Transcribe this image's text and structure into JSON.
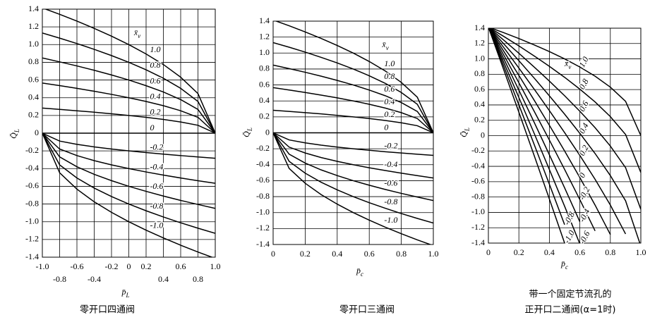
{
  "chart_data": [
    {
      "type": "line",
      "color": "#000000",
      "grid": true,
      "x_label": "p̄",
      "x_label_sub": "L",
      "y_label": "Q̄",
      "y_label_sub": "L",
      "legend_title": "x̄",
      "legend_title_sub": "v",
      "caption": [
        "零开口四通阀"
      ],
      "xlim": [
        -1,
        1
      ],
      "ylim": [
        -1.4,
        1.4
      ],
      "xticks": [
        {
          "value": -1,
          "label": "-1.0"
        },
        -0.8,
        -0.6,
        -0.4,
        -0.2,
        0,
        0.2,
        0.4,
        0.6,
        0.8,
        {
          "value": 1,
          "label": "1.0"
        }
      ],
      "yticks": [
        -1.4,
        -1.2,
        {
          "value": -1,
          "label": "-1.0"
        },
        -0.8,
        -0.6,
        -0.4,
        -0.2,
        0,
        0.2,
        0.4,
        0.6,
        0.8,
        {
          "value": 1,
          "label": "1.0"
        },
        1.2,
        1.4
      ],
      "x": [
        -1,
        -0.8,
        -0.6,
        -0.4,
        -0.2,
        0,
        0.2,
        0.4,
        0.6,
        0.8,
        1
      ],
      "series": [
        {
          "name": "1.0",
          "values": [
            1.414,
            1.342,
            1.265,
            1.183,
            1.095,
            1,
            0.894,
            0.775,
            0.632,
            0.447,
            0
          ]
        },
        {
          "name": "0.8",
          "values": [
            1.131,
            1.073,
            1.012,
            0.946,
            0.876,
            0.8,
            0.715,
            0.62,
            0.506,
            0.358,
            0
          ]
        },
        {
          "name": "0.6",
          "values": [
            0.849,
            0.805,
            0.759,
            0.71,
            0.657,
            0.6,
            0.536,
            0.465,
            0.379,
            0.268,
            0
          ]
        },
        {
          "name": "0.4",
          "values": [
            0.566,
            0.537,
            0.506,
            0.473,
            0.438,
            0.4,
            0.358,
            0.31,
            0.253,
            0.179,
            0
          ]
        },
        {
          "name": "0.2",
          "values": [
            0.283,
            0.268,
            0.253,
            0.237,
            0.219,
            0.2,
            0.179,
            0.155,
            0.126,
            0.089,
            0
          ]
        },
        {
          "name": "0",
          "values": [
            0,
            0,
            0,
            0,
            0,
            0,
            0,
            0,
            0,
            0,
            0
          ]
        },
        {
          "name": "-0.2",
          "values": [
            0,
            -0.089,
            -0.126,
            -0.155,
            -0.179,
            -0.2,
            -0.219,
            -0.237,
            -0.253,
            -0.268,
            -0.283
          ]
        },
        {
          "name": "-0.4",
          "values": [
            0,
            -0.179,
            -0.253,
            -0.31,
            -0.358,
            -0.4,
            -0.438,
            -0.473,
            -0.506,
            -0.537,
            -0.566
          ]
        },
        {
          "name": "-0.6",
          "values": [
            0,
            -0.268,
            -0.379,
            -0.465,
            -0.536,
            -0.6,
            -0.657,
            -0.71,
            -0.759,
            -0.805,
            -0.849
          ]
        },
        {
          "name": "-0.8",
          "values": [
            0,
            -0.358,
            -0.506,
            -0.62,
            -0.715,
            -0.8,
            -0.876,
            -0.946,
            -1.012,
            -1.073,
            -1.131
          ]
        },
        {
          "name": "-1.0",
          "values": [
            0,
            -0.447,
            -0.632,
            -0.775,
            -0.894,
            -1,
            -1.095,
            -1.183,
            -1.265,
            -1.342,
            -1.414
          ]
        }
      ]
    },
    {
      "type": "line",
      "color": "#000000",
      "grid": true,
      "x_label": "p̄",
      "x_label_sub": "c",
      "y_label": "Q̄",
      "y_label_sub": "L",
      "legend_title": "x̄",
      "legend_title_sub": "v",
      "caption": [
        "零开口三通阀"
      ],
      "xlim": [
        0,
        1
      ],
      "ylim": [
        -1.4,
        1.4
      ],
      "xticks": [
        0,
        0.2,
        0.4,
        0.6,
        0.8,
        {
          "value": 1,
          "label": "1.0"
        }
      ],
      "yticks": [
        -1.4,
        -1.2,
        {
          "value": -1,
          "label": "-1.0"
        },
        -0.8,
        -0.6,
        -0.4,
        -0.2,
        0,
        0.2,
        0.4,
        0.6,
        0.8,
        {
          "value": 1,
          "label": "1.0"
        },
        1.2,
        1.4
      ],
      "x": [
        0,
        0.1,
        0.2,
        0.3,
        0.4,
        0.5,
        0.6,
        0.7,
        0.8,
        0.9,
        1
      ],
      "series": [
        {
          "name": "1.0",
          "values": [
            1.414,
            1.342,
            1.265,
            1.183,
            1.095,
            1,
            0.894,
            0.775,
            0.632,
            0.447,
            0
          ]
        },
        {
          "name": "0.8",
          "values": [
            1.131,
            1.073,
            1.012,
            0.946,
            0.876,
            0.8,
            0.715,
            0.62,
            0.506,
            0.358,
            0
          ]
        },
        {
          "name": "0.6",
          "values": [
            0.849,
            0.805,
            0.759,
            0.71,
            0.657,
            0.6,
            0.536,
            0.465,
            0.379,
            0.268,
            0
          ]
        },
        {
          "name": "0.4",
          "values": [
            0.566,
            0.537,
            0.506,
            0.473,
            0.438,
            0.4,
            0.358,
            0.31,
            0.253,
            0.179,
            0
          ]
        },
        {
          "name": "0.2",
          "values": [
            0.283,
            0.268,
            0.253,
            0.237,
            0.219,
            0.2,
            0.179,
            0.155,
            0.126,
            0.089,
            0
          ]
        },
        {
          "name": "0",
          "values": [
            0,
            0,
            0,
            0,
            0,
            0,
            0,
            0,
            0,
            0,
            0
          ]
        },
        {
          "name": "-0.2",
          "values": [
            0,
            -0.089,
            -0.126,
            -0.155,
            -0.179,
            -0.2,
            -0.219,
            -0.237,
            -0.253,
            -0.268,
            -0.283
          ]
        },
        {
          "name": "-0.4",
          "values": [
            0,
            -0.179,
            -0.253,
            -0.31,
            -0.358,
            -0.4,
            -0.438,
            -0.473,
            -0.506,
            -0.537,
            -0.566
          ]
        },
        {
          "name": "-0.6",
          "values": [
            0,
            -0.268,
            -0.379,
            -0.465,
            -0.536,
            -0.6,
            -0.657,
            -0.71,
            -0.759,
            -0.805,
            -0.849
          ]
        },
        {
          "name": "-0.8",
          "values": [
            0,
            -0.358,
            -0.506,
            -0.62,
            -0.715,
            -0.8,
            -0.876,
            -0.946,
            -1.012,
            -1.073,
            -1.131
          ]
        },
        {
          "name": "-1.0",
          "values": [
            0,
            -0.447,
            -0.632,
            -0.775,
            -0.894,
            -1,
            -1.095,
            -1.183,
            -1.265,
            -1.342,
            -1.414
          ]
        }
      ]
    },
    {
      "type": "line",
      "color": "#000000",
      "grid": true,
      "x_label": "p̄",
      "x_label_sub": "c",
      "y_label": "Q̄",
      "y_label_sub": "L",
      "legend_title": "x̄",
      "legend_title_sub": "v",
      "caption": [
        "带一个固定节流孔的",
        "正开口二通阀(α=1时)"
      ],
      "xlim": [
        0,
        1
      ],
      "ylim": [
        -1.4,
        1.4
      ],
      "xticks": [
        0,
        0.2,
        0.4,
        0.6,
        0.8,
        {
          "value": 1,
          "label": "1.0"
        }
      ],
      "yticks": [
        -1.4,
        -1.2,
        {
          "value": -1,
          "label": "-1.0"
        },
        -0.8,
        -0.6,
        -0.4,
        -0.2,
        0,
        0.2,
        0.4,
        0.6,
        0.8,
        {
          "value": 1,
          "label": "1.0"
        },
        1.2,
        1.4
      ],
      "x": [
        0,
        0.1,
        0.2,
        0.3,
        0.4,
        0.5,
        0.6,
        0.7,
        0.8,
        0.9,
        1
      ],
      "series": [
        {
          "name": "1.0",
          "values": [
            1.414,
            1.342,
            1.265,
            1.183,
            1.095,
            1,
            0.894,
            0.775,
            0.632,
            0.447,
            0
          ]
        },
        {
          "name": "0.8",
          "values": [
            1.414,
            1.294,
            1.169,
            1.039,
            0.903,
            0.76,
            0.606,
            0.439,
            0.248,
            0.015,
            -0.48
          ]
        },
        {
          "name": "0.6",
          "values": [
            1.414,
            1.246,
            1.073,
            0.895,
            0.711,
            0.52,
            0.318,
            0.103,
            -0.136,
            -0.417,
            -0.96
          ]
        },
        {
          "name": "0.4",
          "values": [
            1.414,
            1.198,
            0.977,
            0.751,
            0.519,
            0.28,
            0.03,
            -0.233,
            -0.52,
            -0.849,
            -1.44
          ]
        },
        {
          "name": "0.2",
          "values": [
            1.414,
            1.15,
            0.881,
            0.607,
            0.327,
            0.04,
            -0.258,
            -0.569,
            -0.904,
            -1.281,
            null
          ]
        },
        {
          "name": "0",
          "values": [
            1.414,
            1.102,
            0.785,
            0.463,
            0.135,
            -0.2,
            -0.546,
            -0.905,
            -1.288,
            null,
            null
          ]
        },
        {
          "name": "-0.2",
          "values": [
            1.414,
            1.054,
            0.689,
            0.319,
            -0.057,
            -0.44,
            -0.834,
            -1.241,
            null,
            null,
            null
          ]
        },
        {
          "name": "-0.4",
          "values": [
            1.414,
            1.006,
            0.593,
            0.175,
            -0.249,
            -0.68,
            -1.122,
            null,
            null,
            null,
            null
          ]
        },
        {
          "name": "-0.6",
          "values": [
            1.414,
            0.958,
            0.497,
            0.031,
            -0.441,
            -0.92,
            -1.41,
            null,
            null,
            null,
            null
          ]
        },
        {
          "name": "-0.8",
          "values": [
            1.414,
            0.91,
            0.401,
            -0.113,
            -0.633,
            -1.16,
            null,
            null,
            null,
            null,
            null
          ]
        },
        {
          "name": "-1.0",
          "values": [
            1.414,
            0.862,
            0.305,
            -0.257,
            -0.825,
            -1.4,
            null,
            null,
            null,
            null,
            null
          ]
        }
      ]
    }
  ]
}
